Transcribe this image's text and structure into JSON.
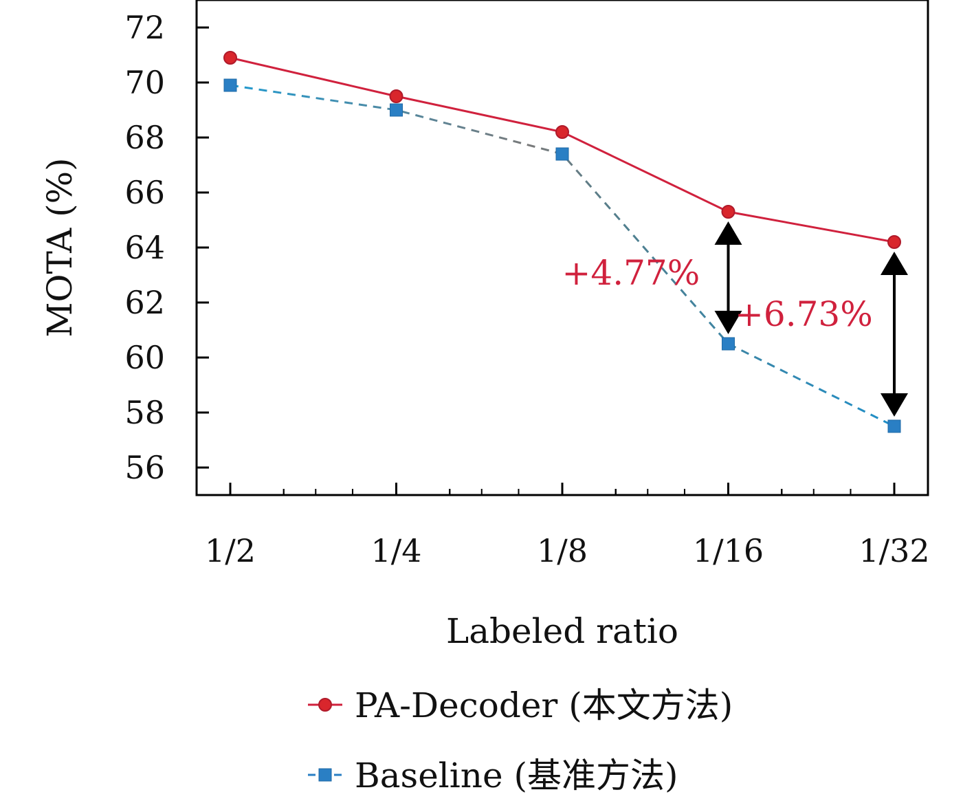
{
  "chart_data": {
    "type": "line",
    "categories": [
      "1/2",
      "1/4",
      "1/8",
      "1/16",
      "1/32"
    ],
    "x": [
      0.5,
      0.25,
      0.125,
      0.0625,
      0.03125
    ],
    "xscale": "log",
    "xlabel": "Labeled ratio",
    "ylabel": "MOTA (%)",
    "ylim": [
      55,
      73
    ],
    "yticks": [
      56,
      58,
      60,
      62,
      64,
      66,
      68,
      70,
      72
    ],
    "grid": false,
    "legend_position": "bottom",
    "series": [
      {
        "name": "PA-Decoder (本文方法)",
        "values": [
          70.9,
          69.5,
          68.2,
          65.3,
          64.2
        ],
        "color": "#d0213d",
        "marker": "circle",
        "linestyle": "solid"
      },
      {
        "name": "Baseline (基准方法)",
        "values": [
          69.9,
          69.0,
          67.4,
          60.5,
          57.5
        ],
        "color": "#2a7fc4",
        "marker": "square",
        "linestyle": "dashed"
      }
    ],
    "annotations": [
      {
        "text": "+4.77%",
        "category": "1/16",
        "from": 65.3,
        "to": 60.5,
        "color": "#d0213d"
      },
      {
        "text": "+6.73%",
        "category": "1/32",
        "from": 64.2,
        "to": 57.5,
        "color": "#d0213d"
      }
    ]
  }
}
